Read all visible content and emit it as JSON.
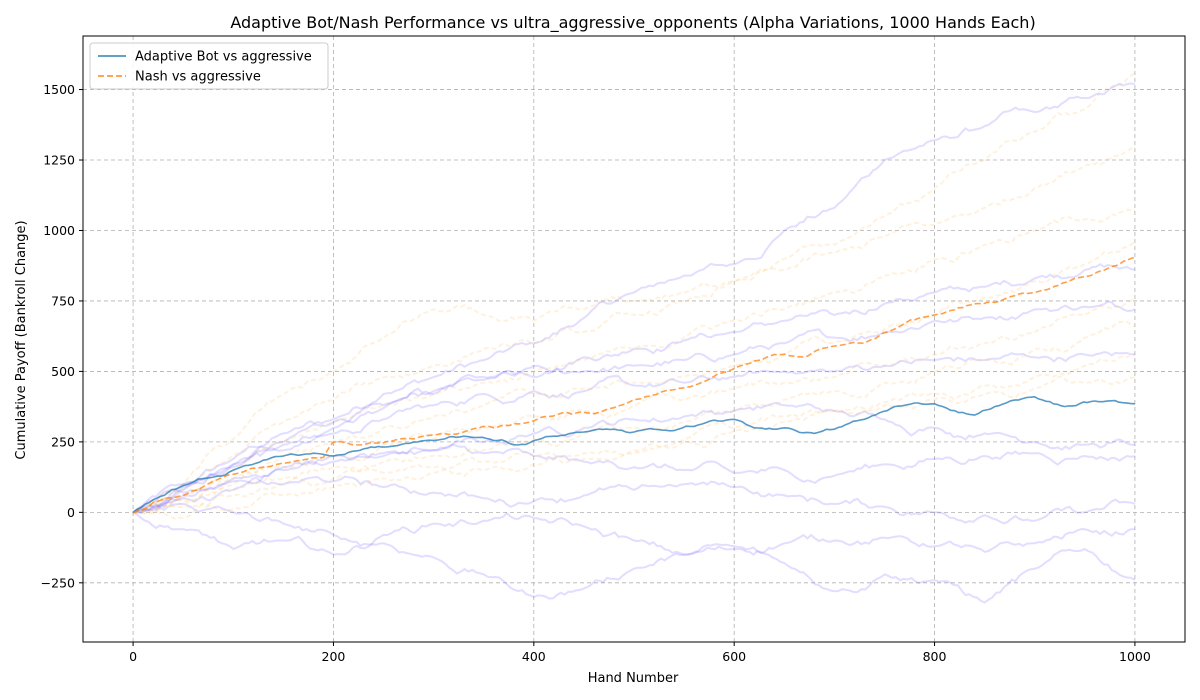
{
  "chart_data": {
    "type": "line",
    "title": "Adaptive Bot/Nash Performance vs  ultra_aggressive_opponents (Alpha Variations, 1000 Hands Each)",
    "xlabel": "Hand Number",
    "ylabel": "Cumulative Payoff (Bankroll Change)",
    "xlim": [
      -50,
      1050
    ],
    "ylim": [
      -460,
      1690
    ],
    "xticks": [
      0,
      200,
      400,
      600,
      800,
      1000
    ],
    "yticks": [
      -250,
      0,
      250,
      500,
      750,
      1000,
      1250,
      1500
    ],
    "grid": true,
    "legend_position": "top-left",
    "series": [
      {
        "name": "Adaptive Bot vs aggressive",
        "color": "#1f77b4",
        "style": "solid",
        "x": [
          0,
          20,
          50,
          80,
          100,
          130,
          150,
          180,
          200,
          230,
          260,
          300,
          330,
          360,
          380,
          400,
          420,
          450,
          480,
          500,
          520,
          540,
          560,
          600,
          620,
          650,
          680,
          700,
          730,
          760,
          800,
          840,
          860,
          900,
          930,
          960,
          1000
        ],
        "y": [
          0,
          45,
          95,
          125,
          150,
          185,
          200,
          210,
          200,
          225,
          235,
          255,
          270,
          255,
          240,
          255,
          270,
          285,
          295,
          285,
          295,
          290,
          305,
          330,
          300,
          300,
          280,
          295,
          330,
          375,
          385,
          345,
          375,
          410,
          375,
          395,
          385
        ]
      },
      {
        "name": "Nash vs aggressive",
        "color": "#ff7f0e",
        "style": "dashed",
        "x": [
          0,
          20,
          50,
          80,
          100,
          130,
          160,
          190,
          200,
          230,
          260,
          300,
          330,
          360,
          400,
          430,
          460,
          500,
          530,
          560,
          600,
          640,
          670,
          700,
          730,
          760,
          800,
          840,
          860,
          900,
          940,
          970,
          1000
        ],
        "y": [
          0,
          35,
          60,
          110,
          135,
          160,
          180,
          195,
          250,
          240,
          255,
          275,
          285,
          300,
          325,
          355,
          350,
          400,
          430,
          450,
          510,
          560,
          550,
          590,
          600,
          650,
          700,
          740,
          745,
          780,
          830,
          860,
          905
        ]
      }
    ],
    "background_series": [
      {
        "color": "#6b5cff",
        "x": [
          0,
          50,
          100,
          150,
          200,
          250,
          300,
          350,
          400,
          450,
          500,
          550,
          600,
          650,
          700,
          750,
          800,
          850,
          900,
          950,
          1000
        ],
        "y": [
          0,
          100,
          190,
          280,
          330,
          420,
          480,
          540,
          600,
          690,
          780,
          840,
          880,
          1000,
          1080,
          1250,
          1320,
          1370,
          1420,
          1470,
          1520
        ]
      },
      {
        "color": "#6b5cff",
        "x": [
          0,
          50,
          100,
          150,
          200,
          250,
          300,
          350,
          400,
          450,
          500,
          550,
          600,
          650,
          700,
          750,
          800,
          850,
          900,
          950,
          1000
        ],
        "y": [
          0,
          90,
          170,
          250,
          320,
          380,
          430,
          480,
          520,
          550,
          580,
          610,
          640,
          680,
          700,
          740,
          780,
          800,
          830,
          860,
          860
        ]
      },
      {
        "color": "#6b5cff",
        "x": [
          0,
          50,
          100,
          150,
          200,
          250,
          300,
          350,
          400,
          450,
          500,
          550,
          600,
          650,
          700,
          750,
          800,
          850,
          900,
          950,
          1000
        ],
        "y": [
          0,
          80,
          160,
          220,
          300,
          370,
          420,
          470,
          480,
          500,
          520,
          540,
          560,
          600,
          620,
          640,
          680,
          690,
          720,
          730,
          720
        ]
      },
      {
        "color": "#6b5cff",
        "x": [
          0,
          50,
          100,
          150,
          200,
          250,
          300,
          350,
          400,
          450,
          500,
          550,
          600,
          650,
          700,
          750,
          800,
          850,
          900,
          950,
          1000
        ],
        "y": [
          0,
          100,
          170,
          240,
          280,
          330,
          380,
          420,
          430,
          430,
          450,
          460,
          480,
          500,
          500,
          520,
          540,
          540,
          550,
          560,
          560
        ]
      },
      {
        "color": "#6b5cff",
        "x": [
          0,
          50,
          100,
          150,
          200,
          250,
          300,
          350,
          400,
          450,
          500,
          550,
          600,
          650,
          700,
          750,
          800,
          850,
          900,
          950,
          1000
        ],
        "y": [
          0,
          60,
          110,
          150,
          180,
          200,
          220,
          250,
          280,
          300,
          330,
          340,
          360,
          380,
          360,
          330,
          300,
          280,
          250,
          240,
          240
        ]
      },
      {
        "color": "#6b5cff",
        "x": [
          0,
          50,
          100,
          150,
          200,
          250,
          300,
          350,
          400,
          450,
          500,
          550,
          600,
          650,
          700,
          750,
          800,
          850,
          900,
          950,
          1000
        ],
        "y": [
          0,
          70,
          120,
          160,
          200,
          210,
          220,
          210,
          200,
          180,
          160,
          150,
          140,
          150,
          130,
          170,
          190,
          200,
          210,
          200,
          200
        ]
      },
      {
        "color": "#6b5cff",
        "x": [
          0,
          50,
          100,
          150,
          200,
          250,
          300,
          350,
          400,
          450,
          500,
          550,
          600,
          650,
          700,
          750,
          800,
          850,
          900,
          950,
          1000
        ],
        "y": [
          0,
          50,
          80,
          100,
          110,
          90,
          70,
          50,
          40,
          60,
          80,
          100,
          90,
          60,
          30,
          20,
          0,
          -10,
          -30,
          0,
          30
        ]
      },
      {
        "color": "#6b5cff",
        "x": [
          0,
          50,
          100,
          150,
          200,
          250,
          300,
          350,
          400,
          450,
          500,
          550,
          600,
          650,
          700,
          750,
          800,
          850,
          900,
          950,
          1000
        ],
        "y": [
          0,
          30,
          0,
          -40,
          -80,
          -110,
          -160,
          -220,
          -300,
          -270,
          -200,
          -150,
          -120,
          -180,
          -280,
          -220,
          -240,
          -320,
          -200,
          -130,
          -240
        ]
      },
      {
        "color": "#6b5cff",
        "x": [
          0,
          50,
          100,
          150,
          200,
          250,
          300,
          350,
          400,
          450,
          500,
          550,
          600,
          650,
          700,
          750,
          800,
          850,
          900,
          950,
          1000
        ],
        "y": [
          0,
          -60,
          -130,
          -100,
          -150,
          -80,
          -40,
          -30,
          -20,
          -50,
          -100,
          -150,
          -130,
          -110,
          -100,
          -90,
          -120,
          -140,
          -110,
          -60,
          -60
        ]
      },
      {
        "color": "#ffb347",
        "x": [
          0,
          50,
          100,
          150,
          200,
          250,
          300,
          350,
          400,
          450,
          500,
          550,
          600,
          650,
          700,
          750,
          800,
          850,
          900,
          950,
          1000
        ],
        "y": [
          0,
          100,
          260,
          420,
          500,
          620,
          720,
          700,
          680,
          720,
          750,
          780,
          820,
          900,
          950,
          1050,
          1150,
          1250,
          1350,
          1430,
          1560
        ]
      },
      {
        "color": "#ffb347",
        "x": [
          0,
          50,
          100,
          150,
          200,
          250,
          300,
          350,
          400,
          450,
          500,
          550,
          600,
          650,
          700,
          750,
          800,
          850,
          900,
          950,
          1000
        ],
        "y": [
          0,
          80,
          200,
          320,
          400,
          480,
          520,
          580,
          600,
          640,
          700,
          750,
          820,
          860,
          920,
          980,
          1020,
          1080,
          1150,
          1230,
          1300
        ]
      },
      {
        "color": "#ffb347",
        "x": [
          0,
          50,
          100,
          150,
          200,
          250,
          300,
          350,
          400,
          450,
          500,
          550,
          600,
          650,
          700,
          750,
          800,
          850,
          900,
          950,
          1000
        ],
        "y": [
          0,
          60,
          150,
          250,
          320,
          380,
          420,
          460,
          500,
          540,
          580,
          620,
          680,
          720,
          780,
          840,
          900,
          950,
          1000,
          1040,
          1070
        ]
      },
      {
        "color": "#ffb347",
        "x": [
          0,
          50,
          100,
          150,
          200,
          250,
          300,
          350,
          400,
          450,
          500,
          550,
          600,
          650,
          700,
          750,
          800,
          850,
          900,
          950,
          1000
        ],
        "y": [
          0,
          50,
          120,
          200,
          250,
          300,
          340,
          380,
          420,
          440,
          460,
          480,
          520,
          560,
          600,
          650,
          700,
          760,
          820,
          880,
          960
        ]
      },
      {
        "color": "#ffb347",
        "x": [
          0,
          50,
          100,
          150,
          200,
          250,
          300,
          350,
          400,
          450,
          500,
          550,
          600,
          650,
          700,
          750,
          800,
          850,
          900,
          950,
          1000
        ],
        "y": [
          0,
          40,
          100,
          160,
          200,
          240,
          260,
          300,
          340,
          360,
          380,
          400,
          440,
          460,
          480,
          520,
          560,
          600,
          640,
          700,
          760
        ]
      },
      {
        "color": "#ffb347",
        "x": [
          0,
          50,
          100,
          150,
          200,
          250,
          300,
          350,
          400,
          450,
          500,
          550,
          600,
          650,
          700,
          750,
          800,
          850,
          900,
          950,
          1000
        ],
        "y": [
          0,
          30,
          80,
          120,
          160,
          180,
          200,
          220,
          250,
          280,
          300,
          320,
          360,
          400,
          430,
          460,
          500,
          540,
          580,
          620,
          660
        ]
      },
      {
        "color": "#ffb347",
        "x": [
          0,
          50,
          100,
          150,
          200,
          250,
          300,
          350,
          400,
          450,
          500,
          550,
          600,
          650,
          700,
          750,
          800,
          850,
          900,
          950,
          1000
        ],
        "y": [
          0,
          20,
          60,
          100,
          120,
          140,
          160,
          180,
          200,
          210,
          220,
          260,
          300,
          340,
          360,
          380,
          400,
          420,
          440,
          460,
          480
        ]
      },
      {
        "color": "#ffb347",
        "x": [
          0,
          50,
          100,
          150,
          200,
          250,
          300,
          350,
          400,
          450,
          500,
          550,
          600,
          650,
          700,
          750,
          800,
          850,
          900,
          950,
          1000
        ],
        "y": [
          0,
          -20,
          10,
          60,
          90,
          120,
          140,
          150,
          170,
          190,
          210,
          250,
          290,
          320,
          360,
          390,
          420,
          450,
          480,
          520,
          560
        ]
      }
    ]
  }
}
